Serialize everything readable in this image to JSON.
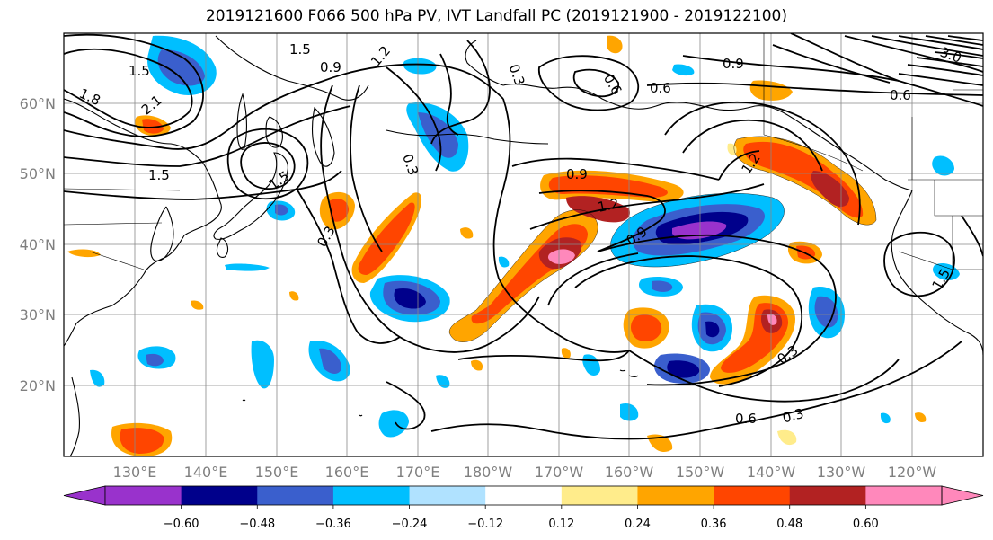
{
  "title": "2019121600 F066 500 hPa PV, IVT Landfall PC (2019121900 - 2019122100)",
  "lon_labels": [
    "130°E",
    "140°E",
    "150°E",
    "160°E",
    "170°E",
    "180°W",
    "170°W",
    "160°W",
    "150°W",
    "140°W",
    "130°W",
    "120°W"
  ],
  "lat_labels": [
    "60°N",
    "50°N",
    "40°N",
    "30°N",
    "20°N"
  ],
  "colorbar": {
    "colors": [
      "#9932cc",
      "#00008b",
      "#3a5fcd",
      "#00bfff",
      "#b0e2ff",
      "#ffffff",
      "#ffec8b",
      "#ffa500",
      "#ff4500",
      "#b22222",
      "#ff88bb"
    ],
    "tick_labels": [
      "−0.60",
      "−0.48",
      "−0.36",
      "−0.24",
      "−0.12",
      "0.12",
      "0.24",
      "0.36",
      "0.48",
      "0.60"
    ]
  },
  "contour_labels": [
    "1.5",
    "1.5",
    "1.8",
    "2.1",
    "1.5",
    "1.5",
    "1.2",
    "0.9",
    "0.3",
    "0.3",
    "0.9",
    "0.6",
    "0.6",
    "0.9",
    "1.2",
    "1.2",
    "0.9",
    "0.3",
    "0.6",
    "0.3",
    "0.3",
    "0.6",
    "1.5",
    "3.0"
  ],
  "colors": {
    "map_frame": "#000000",
    "grid": "#888888",
    "coastline": "#000000",
    "contour": "#000000"
  }
}
